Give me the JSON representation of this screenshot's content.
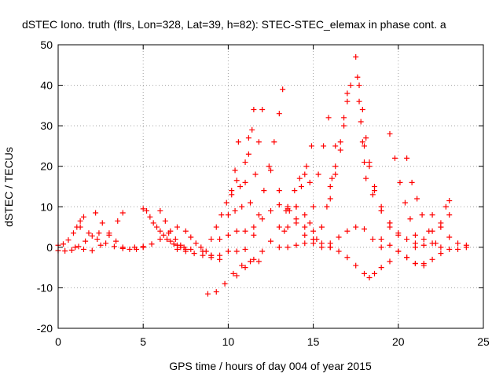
{
  "chart_data": {
    "type": "scatter",
    "title": "dSTEC Iono. truth (flrs, Lon=328, Lat=39, h=82): STEC-STEC_elemax in phase cont. a",
    "xlabel": "GPS time / hours of day 004 of year 2015",
    "ylabel": "dSTEC  / TECUs",
    "xlim": [
      0,
      25
    ],
    "ylim": [
      -20,
      50
    ],
    "xticks": [
      0,
      5,
      10,
      15,
      20,
      25
    ],
    "yticks": [
      -20,
      -10,
      0,
      10,
      20,
      30,
      40,
      50
    ],
    "xtick_labels": [
      "0",
      "5",
      "10",
      "15",
      "20",
      "25"
    ],
    "ytick_labels": [
      "-20",
      "-10",
      "0",
      "10",
      "20",
      "30",
      "40",
      "50"
    ],
    "grid": true,
    "marker": "+",
    "color": "#ff0000",
    "series": [
      {
        "x": [
          0.0,
          0.3,
          0.6,
          0.9,
          1.1,
          1.3,
          1.5
        ],
        "y": [
          0.5,
          0.8,
          1.8,
          3.5,
          5.0,
          6.5,
          7.5
        ]
      },
      {
        "x": [
          0.0,
          0.4,
          0.8,
          1.2,
          1.6,
          2.0,
          2.4
        ],
        "y": [
          -0.8,
          -0.9,
          -0.7,
          0.2,
          1.5,
          2.8,
          3.5
        ]
      },
      {
        "x": [
          1.0,
          1.5,
          2.0,
          2.5,
          3.0,
          3.5,
          3.8
        ],
        "y": [
          0.0,
          -0.5,
          -0.8,
          0.5,
          3.0,
          6.5,
          8.5
        ]
      },
      {
        "x": [
          2.2,
          2.6,
          3.0,
          3.4,
          3.8,
          4.2,
          4.6,
          5.0
        ],
        "y": [
          8.5,
          6.0,
          3.5,
          1.5,
          0.0,
          -0.5,
          -0.5,
          0.0
        ]
      },
      {
        "x": [
          1.3,
          1.8,
          2.3,
          2.8,
          3.3,
          3.8
        ],
        "y": [
          5.0,
          3.5,
          2.0,
          1.0,
          0.2,
          -0.3
        ]
      },
      {
        "x": [
          5.0,
          5.4,
          5.8,
          6.2,
          6.6,
          7.0,
          7.4,
          7.8
        ],
        "y": [
          9.5,
          7.5,
          5.0,
          3.0,
          1.5,
          0.5,
          0.0,
          -0.5
        ]
      },
      {
        "x": [
          5.2,
          5.6,
          6.0,
          6.4,
          6.8,
          7.2
        ],
        "y": [
          9.0,
          6.0,
          4.0,
          2.0,
          0.8,
          0.0
        ]
      },
      {
        "x": [
          4.5,
          5.0,
          5.5,
          6.0,
          6.5,
          7.0
        ],
        "y": [
          0.0,
          0.2,
          0.8,
          2.0,
          3.5,
          5.0
        ]
      },
      {
        "x": [
          6.0,
          6.3,
          6.6,
          6.9,
          7.2,
          7.5
        ],
        "y": [
          9.0,
          6.5,
          4.0,
          2.0,
          0.5,
          -0.5
        ]
      },
      {
        "x": [
          7.5,
          7.8,
          8.1,
          8.4,
          8.7,
          9.0
        ],
        "y": [
          4.0,
          2.5,
          1.0,
          0.0,
          -1.0,
          -2.0
        ]
      },
      {
        "x": [
          7.0,
          7.5,
          8.0,
          8.5,
          9.0,
          9.5
        ],
        "y": [
          -0.5,
          -1.0,
          -1.5,
          -2.0,
          -2.5,
          -3.0
        ]
      },
      {
        "x": [
          8.5,
          9.0,
          9.3,
          9.6,
          9.9,
          10.2,
          10.5
        ],
        "y": [
          -1.0,
          2.0,
          5.0,
          8.0,
          11.0,
          14.0,
          16.5
        ]
      },
      {
        "x": [
          9.0,
          9.5,
          10.0,
          10.2,
          10.4,
          10.6
        ],
        "y": [
          -2.0,
          2.0,
          8.0,
          13.0,
          19.0,
          26.0
        ]
      },
      {
        "x": [
          9.5,
          10.0,
          10.4,
          10.7,
          11.0,
          11.2
        ],
        "y": [
          -2.0,
          3.0,
          9.0,
          15.0,
          21.0,
          27.0
        ]
      },
      {
        "x": [
          10.0,
          10.5,
          10.8,
          11.0,
          11.2,
          11.4,
          11.5
        ],
        "y": [
          -1.0,
          4.0,
          10.0,
          16.0,
          23.0,
          29.0,
          34.0
        ]
      },
      {
        "x": [
          10.5,
          11.0,
          11.3,
          11.6,
          11.8,
          12.0
        ],
        "y": [
          -1.0,
          4.0,
          11.0,
          18.0,
          26.0,
          34.0
        ]
      },
      {
        "x": [
          11.0,
          11.5,
          11.8,
          12.1,
          12.4,
          12.7,
          13.0,
          13.2
        ],
        "y": [
          -0.5,
          3.0,
          8.0,
          14.0,
          20.0,
          26.0,
          33.0,
          39.0
        ]
      },
      {
        "x": [
          8.8,
          9.3,
          9.8,
          10.3,
          10.8,
          11.3,
          11.8
        ],
        "y": [
          -11.5,
          -11.0,
          -9.0,
          -6.5,
          -4.5,
          -3.5,
          -3.5
        ]
      },
      {
        "x": [
          10.5,
          11.0,
          11.5,
          12.0,
          12.5,
          13.0,
          13.4
        ],
        "y": [
          -7.0,
          -5.0,
          -3.0,
          -1.0,
          1.5,
          5.0,
          9.0
        ]
      },
      {
        "x": [
          11.5,
          12.0,
          12.5,
          13.0,
          13.5,
          14.0
        ],
        "y": [
          5.0,
          7.0,
          9.0,
          10.5,
          9.5,
          7.0
        ]
      },
      {
        "x": [
          12.5,
          13.0,
          13.5,
          14.0,
          14.5,
          15.0
        ],
        "y": [
          19.0,
          14.0,
          10.0,
          6.0,
          3.0,
          1.0
        ]
      },
      {
        "x": [
          13.0,
          13.3,
          13.6,
          13.9,
          14.2,
          14.5,
          14.8
        ],
        "y": [
          0.0,
          4.0,
          9.0,
          14.0,
          17.0,
          18.0,
          16.0
        ]
      },
      {
        "x": [
          13.5,
          14.0,
          14.3,
          14.6,
          14.9
        ],
        "y": [
          5.0,
          10.0,
          15.0,
          20.0,
          25.0
        ]
      },
      {
        "x": [
          14.0,
          14.5,
          14.8,
          15.0,
          15.2
        ],
        "y": [
          10.0,
          8.0,
          6.0,
          4.0,
          2.0
        ]
      },
      {
        "x": [
          13.5,
          14.0,
          14.5,
          15.0,
          15.5,
          16.0
        ],
        "y": [
          0.0,
          0.5,
          1.0,
          2.0,
          1.0,
          0.0
        ]
      },
      {
        "x": [
          14.5,
          15.0,
          15.3,
          15.6,
          15.9
        ],
        "y": [
          5.0,
          10.0,
          18.0,
          25.0,
          32.0
        ]
      },
      {
        "x": [
          15.0,
          15.5,
          15.8,
          16.1,
          16.3
        ],
        "y": [
          2.0,
          5.0,
          10.0,
          17.0,
          25.0
        ]
      },
      {
        "x": [
          15.5,
          16.0,
          16.3,
          16.6,
          16.8,
          17.0
        ],
        "y": [
          5.0,
          12.0,
          18.0,
          24.0,
          30.0,
          36.0
        ]
      },
      {
        "x": [
          16.0,
          16.3,
          16.6,
          16.8,
          17.0,
          17.2
        ],
        "y": [
          15.0,
          20.0,
          26.0,
          32.0,
          38.0,
          40.0
        ]
      },
      {
        "x": [
          15.5,
          16.0,
          16.5,
          17.0,
          17.5,
          18.0,
          18.5,
          19.0
        ],
        "y": [
          0.0,
          1.0,
          2.5,
          4.0,
          5.0,
          4.5,
          2.0,
          0.0
        ]
      },
      {
        "x": [
          16.0,
          16.5,
          17.0,
          17.5,
          18.0,
          18.3,
          18.6,
          19.0,
          19.5
        ],
        "y": [
          0.0,
          -1.0,
          -2.5,
          -4.5,
          -6.5,
          -7.5,
          -6.5,
          -5.0,
          -3.5
        ]
      },
      {
        "x": [
          17.5,
          17.6,
          17.7,
          17.8,
          17.9,
          18.0,
          18.1
        ],
        "y": [
          47.0,
          42.0,
          36.0,
          31.0,
          26.0,
          21.0,
          17.0
        ]
      },
      {
        "x": [
          17.7,
          17.9,
          18.1,
          18.3,
          18.6,
          19.0,
          19.5
        ],
        "y": [
          40.0,
          34.0,
          27.0,
          21.0,
          14.0,
          9.0,
          5.0
        ]
      },
      {
        "x": [
          18.0,
          18.3,
          18.6,
          19.0,
          19.5,
          20.0
        ],
        "y": [
          25.0,
          20.0,
          15.0,
          10.0,
          6.0,
          3.0
        ]
      },
      {
        "x": [
          18.5,
          19.0,
          19.5,
          20.0,
          20.5,
          21.0,
          21.5
        ],
        "y": [
          13.0,
          9.0,
          6.0,
          3.5,
          2.0,
          1.0,
          0.5
        ]
      },
      {
        "x": [
          19.5,
          19.8,
          20.1,
          20.4,
          20.7,
          21.0
        ],
        "y": [
          28.0,
          22.0,
          16.0,
          11.0,
          7.0,
          3.0
        ]
      },
      {
        "x": [
          20.5,
          20.8,
          21.1,
          21.4,
          21.8,
          22.2
        ],
        "y": [
          22.0,
          16.0,
          12.0,
          8.0,
          4.0,
          1.0
        ]
      },
      {
        "x": [
          20.0,
          20.5,
          21.0,
          21.5,
          22.0,
          22.5
        ],
        "y": [
          -1.0,
          -2.5,
          -4.0,
          -4.0,
          -3.0,
          -1.5
        ]
      },
      {
        "x": [
          19.0,
          19.5,
          20.0,
          20.5,
          21.0,
          21.5
        ],
        "y": [
          2.0,
          0.5,
          -1.0,
          -2.5,
          -4.0,
          -4.5
        ]
      },
      {
        "x": [
          21.0,
          21.5,
          22.0,
          22.5,
          23.0
        ],
        "y": [
          0.0,
          2.0,
          4.0,
          6.0,
          8.0
        ]
      },
      {
        "x": [
          22.0,
          22.5,
          22.8,
          23.0
        ],
        "y": [
          1.0,
          5.0,
          10.0,
          11.5
        ]
      },
      {
        "x": [
          22.0,
          22.5,
          23.0,
          23.5,
          24.0
        ],
        "y": [
          8.0,
          5.0,
          2.5,
          1.0,
          0.5
        ]
      },
      {
        "x": [
          22.5,
          23.0,
          23.5,
          24.0
        ],
        "y": [
          0.0,
          -0.5,
          -0.5,
          0.0
        ]
      }
    ]
  }
}
